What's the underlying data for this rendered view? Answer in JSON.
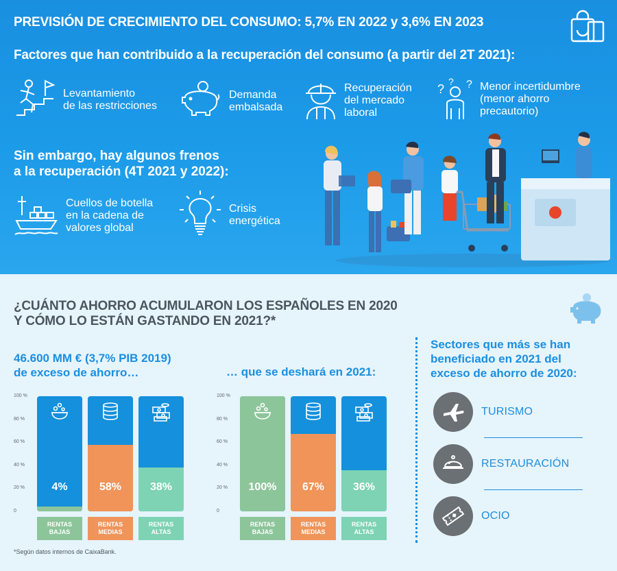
{
  "header": {
    "title": "PREVISIÓN DE CRECIMIENTO DEL CONSUMO: 5,7% EN 2022  y 3,6% EN 2023",
    "factors_title": "Factores que han contribuido a la recuperación del consumo (a partir del 2T 2021):"
  },
  "factors": [
    {
      "icon": "running-person-icon",
      "text": "Levantamiento\nde las restricciones"
    },
    {
      "icon": "piggy-bank-icon",
      "text": "Demanda\nembalsada"
    },
    {
      "icon": "worker-icon",
      "text": "Recuperación\ndel mercado\nlaboral"
    },
    {
      "icon": "question-person-icon",
      "text": "Menor incertidumbre\n(menor ahorro\nprecautorio)"
    }
  ],
  "brakes": {
    "title": "Sin embargo, hay algunos frenos\na la recuperación (4T 2021 y 2022):",
    "items": [
      {
        "icon": "cargo-ship-icon",
        "text": "Cuellos de botella\nen la cadena de\nvalores global"
      },
      {
        "icon": "light-bulb-icon",
        "text": "Crisis\nenergética"
      }
    ]
  },
  "savings": {
    "title": "¿CUÁNTO AHORRO ACUMULARON LOS ESPAÑOLES EN 2020\nY CÓMO LO ESTÁN GASTANDO EN 2021?*",
    "subtitle_left": "46.600 MM € (3,7% PIB 2019)\nde exceso de ahorro…",
    "subtitle_right": "… que se deshará en 2021:",
    "footnote": "*Según datos internos de CaixaBank."
  },
  "sectors": {
    "title": "Sectores que más se han\nbeneficiado en 2021 del\nexceso de ahorro de 2020:",
    "items": [
      {
        "icon": "airplane-icon",
        "label": "TURISMO"
      },
      {
        "icon": "cloche-icon",
        "label": "RESTAURACIÓN"
      },
      {
        "icon": "ticket-icon",
        "label": "OCIO"
      }
    ]
  },
  "colors": {
    "blue": "#1590dc",
    "green": "#8cc59a",
    "orange": "#f0945a",
    "teal": "#7dd3b4"
  },
  "chart_data": [
    {
      "type": "bar",
      "title": "46.600 MM € (3,7% PIB 2019) de exceso de ahorro…",
      "categories": [
        "RENTAS\nBAJAS",
        "RENTAS\nMEDIAS",
        "RENTAS\nALTAS"
      ],
      "values": [
        4,
        58,
        38
      ],
      "labels": [
        "4%",
        "58%",
        "38%"
      ],
      "yticks": [
        "0",
        "20 %",
        "40 %",
        "60 %",
        "80 %",
        "100 %"
      ],
      "ylim": [
        0,
        100
      ],
      "fill_colors": [
        "#8cc59a",
        "#f0945a",
        "#7dd3b4"
      ],
      "icons": [
        "coin-purse-icon",
        "coin-stack-icon",
        "money-bills-icon"
      ]
    },
    {
      "type": "bar",
      "title": "… que se deshará en 2021:",
      "categories": [
        "RENTAS\nBAJAS",
        "RENTAS\nMEDIAS",
        "RENTAS\nALTAS"
      ],
      "values": [
        100,
        67,
        36
      ],
      "labels": [
        "100%",
        "67%",
        "36%"
      ],
      "yticks": [
        "0",
        "20 %",
        "40 %",
        "60 %",
        "80 %",
        "100 %"
      ],
      "ylim": [
        0,
        100
      ],
      "fill_colors": [
        "#8cc59a",
        "#f0945a",
        "#7dd3b4"
      ],
      "icons": [
        "coin-purse-icon",
        "coin-stack-icon",
        "money-bills-icon"
      ]
    }
  ]
}
